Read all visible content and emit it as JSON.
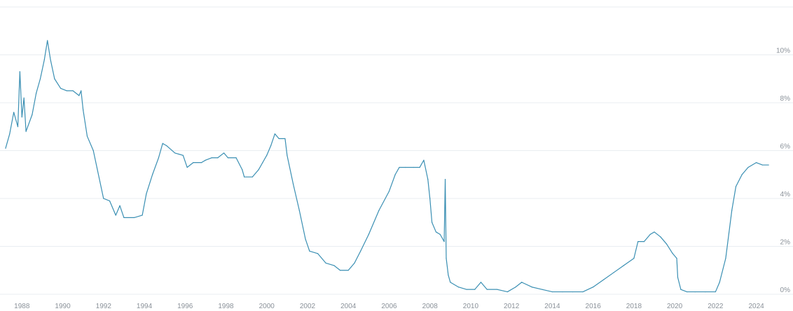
{
  "chart_data": {
    "type": "line",
    "title": "",
    "xlabel": "",
    "ylabel": "",
    "x_tick_labels": [
      "1988",
      "1990",
      "1992",
      "1994",
      "1996",
      "1998",
      "2000",
      "2002",
      "2004",
      "2006",
      "2008",
      "2010",
      "2012",
      "2014",
      "2016",
      "2018",
      "2020",
      "2022",
      "2024"
    ],
    "y_tick_labels": [
      "0%",
      "2%",
      "4%",
      "6%",
      "8%",
      "10%"
    ],
    "y_ticks": [
      0,
      2,
      4,
      6,
      8,
      10
    ],
    "xlim": [
      1987.2,
      2024.7
    ],
    "ylim": [
      0,
      12
    ],
    "grid": true,
    "legend": "none",
    "colors": {
      "line": "#3a8fb3",
      "grid": "#e9edf1",
      "tick_text": "#8a9199"
    },
    "series": [
      {
        "values": [
          [
            1987.2,
            6.1
          ],
          [
            1987.4,
            6.7
          ],
          [
            1987.6,
            7.6
          ],
          [
            1987.8,
            7.0
          ],
          [
            1987.9,
            9.3
          ],
          [
            1988.0,
            7.4
          ],
          [
            1988.1,
            8.2
          ],
          [
            1988.2,
            6.8
          ],
          [
            1988.5,
            7.5
          ],
          [
            1988.7,
            8.4
          ],
          [
            1988.9,
            9.0
          ],
          [
            1989.1,
            9.8
          ],
          [
            1989.25,
            10.6
          ],
          [
            1989.4,
            9.8
          ],
          [
            1989.6,
            9.0
          ],
          [
            1989.9,
            8.6
          ],
          [
            1990.2,
            8.5
          ],
          [
            1990.5,
            8.5
          ],
          [
            1990.8,
            8.3
          ],
          [
            1990.9,
            8.5
          ],
          [
            1991.0,
            7.7
          ],
          [
            1991.2,
            6.6
          ],
          [
            1991.5,
            6.0
          ],
          [
            1991.7,
            5.2
          ],
          [
            1992.0,
            4.0
          ],
          [
            1992.3,
            3.9
          ],
          [
            1992.6,
            3.3
          ],
          [
            1992.8,
            3.7
          ],
          [
            1993.0,
            3.2
          ],
          [
            1993.5,
            3.2
          ],
          [
            1993.9,
            3.3
          ],
          [
            1994.1,
            4.2
          ],
          [
            1994.4,
            5.0
          ],
          [
            1994.7,
            5.7
          ],
          [
            1994.9,
            6.3
          ],
          [
            1995.1,
            6.2
          ],
          [
            1995.5,
            5.9
          ],
          [
            1995.9,
            5.8
          ],
          [
            1996.1,
            5.3
          ],
          [
            1996.4,
            5.5
          ],
          [
            1996.8,
            5.5
          ],
          [
            1997.0,
            5.6
          ],
          [
            1997.3,
            5.7
          ],
          [
            1997.6,
            5.7
          ],
          [
            1997.9,
            5.9
          ],
          [
            1998.1,
            5.7
          ],
          [
            1998.5,
            5.7
          ],
          [
            1998.8,
            5.2
          ],
          [
            1998.9,
            4.9
          ],
          [
            1999.3,
            4.9
          ],
          [
            1999.6,
            5.2
          ],
          [
            1999.8,
            5.5
          ],
          [
            2000.0,
            5.8
          ],
          [
            2000.2,
            6.2
          ],
          [
            2000.4,
            6.7
          ],
          [
            2000.6,
            6.5
          ],
          [
            2000.9,
            6.5
          ],
          [
            2001.0,
            5.8
          ],
          [
            2001.3,
            4.6
          ],
          [
            2001.6,
            3.5
          ],
          [
            2001.9,
            2.3
          ],
          [
            2002.1,
            1.8
          ],
          [
            2002.5,
            1.7
          ],
          [
            2002.9,
            1.3
          ],
          [
            2003.3,
            1.2
          ],
          [
            2003.6,
            1.0
          ],
          [
            2004.0,
            1.0
          ],
          [
            2004.3,
            1.3
          ],
          [
            2004.6,
            1.8
          ],
          [
            2005.0,
            2.5
          ],
          [
            2005.5,
            3.5
          ],
          [
            2006.0,
            4.3
          ],
          [
            2006.3,
            5.0
          ],
          [
            2006.5,
            5.3
          ],
          [
            2006.8,
            5.3
          ],
          [
            2007.2,
            5.3
          ],
          [
            2007.5,
            5.3
          ],
          [
            2007.7,
            5.6
          ],
          [
            2007.9,
            4.8
          ],
          [
            2008.0,
            4.0
          ],
          [
            2008.1,
            3.0
          ],
          [
            2008.3,
            2.6
          ],
          [
            2008.5,
            2.5
          ],
          [
            2008.7,
            2.2
          ],
          [
            2008.75,
            4.8
          ],
          [
            2008.8,
            1.5
          ],
          [
            2008.9,
            0.8
          ],
          [
            2009.0,
            0.5
          ],
          [
            2009.4,
            0.3
          ],
          [
            2009.8,
            0.2
          ],
          [
            2010.2,
            0.2
          ],
          [
            2010.5,
            0.5
          ],
          [
            2010.8,
            0.2
          ],
          [
            2011.3,
            0.2
          ],
          [
            2011.8,
            0.1
          ],
          [
            2012.2,
            0.3
          ],
          [
            2012.5,
            0.5
          ],
          [
            2013.0,
            0.3
          ],
          [
            2013.5,
            0.2
          ],
          [
            2014.0,
            0.1
          ],
          [
            2014.5,
            0.1
          ],
          [
            2015.0,
            0.1
          ],
          [
            2015.5,
            0.1
          ],
          [
            2016.0,
            0.3
          ],
          [
            2016.5,
            0.6
          ],
          [
            2017.0,
            0.9
          ],
          [
            2017.5,
            1.2
          ],
          [
            2018.0,
            1.5
          ],
          [
            2018.2,
            2.2
          ],
          [
            2018.5,
            2.2
          ],
          [
            2018.8,
            2.5
          ],
          [
            2019.0,
            2.6
          ],
          [
            2019.3,
            2.4
          ],
          [
            2019.6,
            2.1
          ],
          [
            2019.9,
            1.7
          ],
          [
            2020.1,
            1.5
          ],
          [
            2020.15,
            0.7
          ],
          [
            2020.3,
            0.2
          ],
          [
            2020.6,
            0.1
          ],
          [
            2021.0,
            0.1
          ],
          [
            2021.5,
            0.1
          ],
          [
            2022.0,
            0.1
          ],
          [
            2022.2,
            0.5
          ],
          [
            2022.5,
            1.5
          ],
          [
            2022.8,
            3.5
          ],
          [
            2023.0,
            4.5
          ],
          [
            2023.3,
            5.0
          ],
          [
            2023.6,
            5.3
          ],
          [
            2024.0,
            5.5
          ],
          [
            2024.3,
            5.4
          ],
          [
            2024.6,
            5.4
          ]
        ]
      }
    ]
  }
}
